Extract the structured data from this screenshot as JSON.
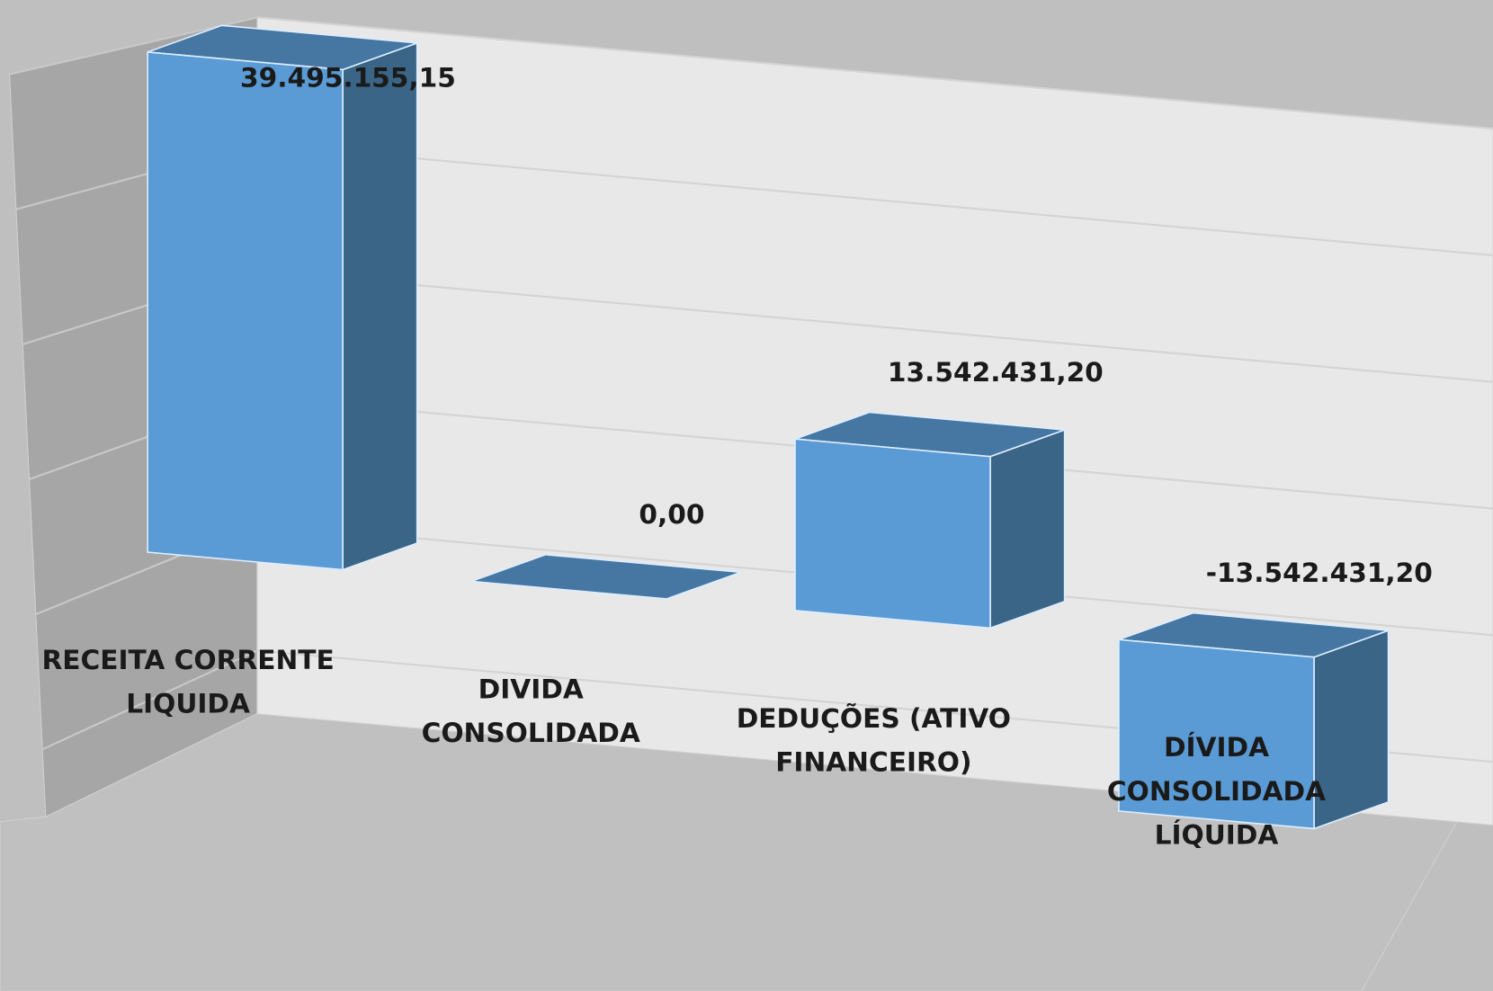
{
  "chart_data": {
    "type": "bar3d",
    "categories": [
      "RECEITA CORRENTE LIQUIDA",
      "DIVIDA CONSOLIDADA",
      "DEDUÇÕES (ATIVO FINANCEIRO)",
      "DÍVIDA CONSOLIDADA LÍQUIDA"
    ],
    "values": [
      39495155.15,
      0,
      13542431.2,
      -13542431.2
    ],
    "value_labels": [
      "39.495.155,15",
      "0,00",
      "13.542.431,20",
      "-13.542.431,20"
    ],
    "color": "#5b9bd5",
    "ylim": [
      -15000000,
      40000000
    ],
    "yticks": [
      -10000000,
      0,
      10000000,
      20000000,
      30000000,
      40000000
    ],
    "grid": true
  }
}
